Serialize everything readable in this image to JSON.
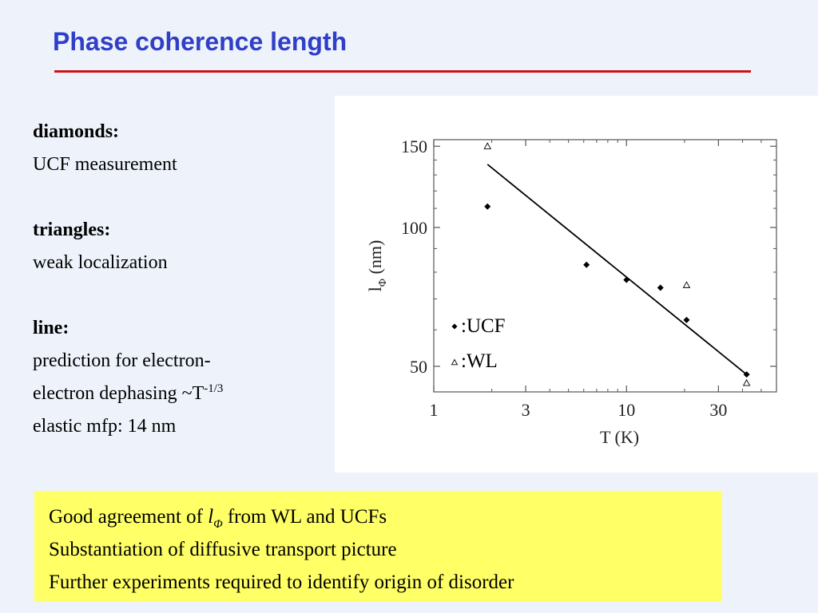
{
  "slide": {
    "title": "Phase coherence length",
    "blocks": [
      {
        "heading": "diamonds:",
        "text": "UCF measurement"
      },
      {
        "heading": "triangles:",
        "text": "weak localization"
      },
      {
        "heading": "line:",
        "text": "prediction for electron-",
        "text2": "electron dephasing ~T",
        "sup": "-1/3",
        "text3": "elastic mfp: 14 nm"
      }
    ],
    "summary": {
      "line1_prefix": "Good agreement of ",
      "symbol": "l",
      "symbol_sub": "Φ",
      "line1_suffix": " from WL and UCFs",
      "line2": "Substantiation of diffusive transport picture",
      "line3": "Further experiments required to identify origin of disorder"
    }
  },
  "chart_data": {
    "type": "scatter",
    "xlabel": "T (K)",
    "ylabel_main": "l",
    "ylabel_sub": "Φ",
    "ylabel_unit": "(nm)",
    "xscale": "log",
    "yscale": "log",
    "xlim": [
      1,
      60
    ],
    "ylim": [
      44,
      155
    ],
    "xticks": [
      1,
      3,
      10,
      30
    ],
    "xtick_labels": [
      "1",
      "3",
      "10",
      "30"
    ],
    "yticks": [
      50,
      100,
      150
    ],
    "ytick_labels": [
      "50",
      "100",
      "150"
    ],
    "series": [
      {
        "name": ":UCF",
        "marker": "diamond",
        "x": [
          1.9,
          6.2,
          10,
          15,
          20.5,
          42
        ],
        "y": [
          111,
          83,
          77,
          74,
          63,
          48
        ]
      },
      {
        "name": ":WL",
        "marker": "triangle",
        "x": [
          1.9,
          20.5,
          42
        ],
        "y": [
          150,
          75,
          46
        ]
      }
    ],
    "fit_line": {
      "x": [
        1.9,
        42
      ],
      "y": [
        137,
        48
      ]
    },
    "legend_position": "bottom-left",
    "colors": {
      "markers": "#000000",
      "line": "#000000",
      "axes": "#555555"
    }
  }
}
